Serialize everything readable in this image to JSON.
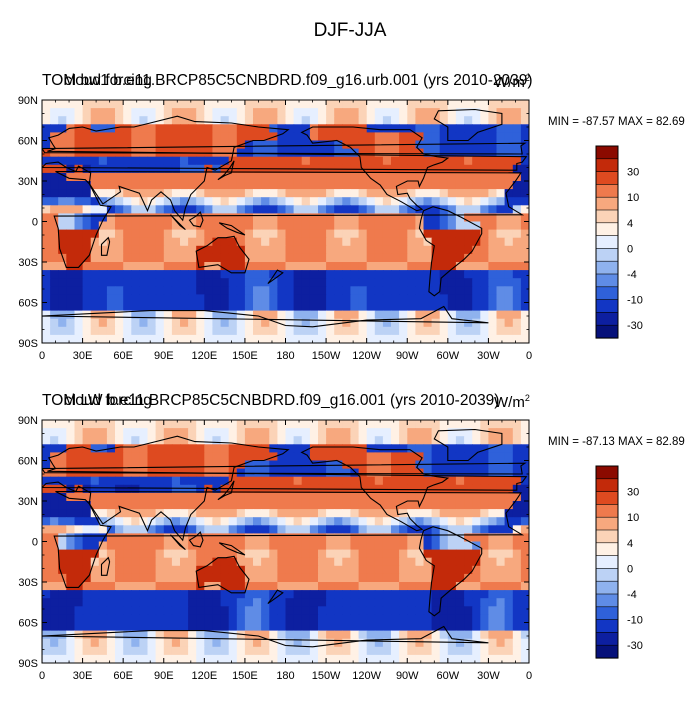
{
  "figure": {
    "title": "DJF-JJA"
  },
  "panels": [
    {
      "title_left": "TOM bw1",
      "title_main": "b.e11.BRCP85C5CNBDRD.f09_g16.urb.001 (yrs 2010-2039)",
      "title_overlay": "cloud forcing",
      "units": "W/m",
      "units_exp": "2",
      "minmax": "MIN = -87.57 MAX =  82.69"
    },
    {
      "title_left": "TOM LW",
      "title_main": "b.e11.BRCP85C5CNBDRD.f09_g16.001 (yrs 2010-2039)",
      "title_overlay": "cloud forcing",
      "units": "W/m",
      "units_exp": "2",
      "minmax": "MIN = -87.13 MAX =  82.89"
    }
  ],
  "chart_data": {
    "type": "heatmap",
    "projection": "cylindrical-equidistant",
    "lon_ticks": [
      "0",
      "30E",
      "60E",
      "90E",
      "120E",
      "150E",
      "180",
      "150W",
      "120W",
      "90W",
      "60W",
      "30W",
      "0"
    ],
    "lat_ticks": [
      "90N",
      "60N",
      "30N",
      "0",
      "30S",
      "60S",
      "90S"
    ],
    "lat_range": [
      -90,
      90
    ],
    "lon_range": [
      0,
      360
    ],
    "colorbar_levels": [
      "30",
      "10",
      "4",
      "0",
      "-4",
      "-10",
      "-30"
    ],
    "colorbar_colors": [
      "#8b0a00",
      "#c32a0a",
      "#de4a20",
      "#ef7a4d",
      "#f7a87e",
      "#fbd3b7",
      "#fff1e5",
      "#e6efff",
      "#bcd2f5",
      "#8fb2ee",
      "#5f8ce6",
      "#2f61da",
      "#1236c4",
      "#0d1fa0",
      "#06117a"
    ],
    "palette": {
      "warm": "#de4a20",
      "cool": "#2f61da",
      "coast": "#000000"
    }
  }
}
